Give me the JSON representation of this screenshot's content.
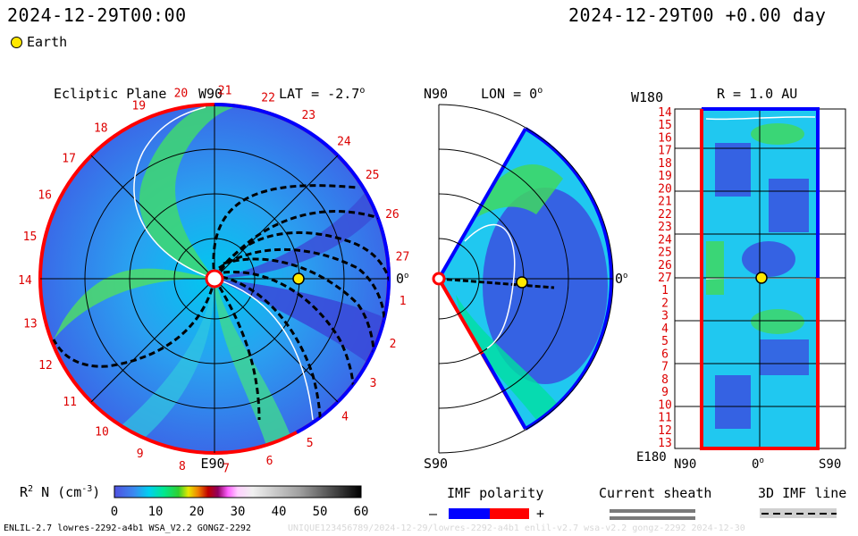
{
  "header": {
    "left_timestamp": "2024-12-29T00:00",
    "right_timestamp": "2024-12-29T00 +0.00 day",
    "earth_label": "Earth"
  },
  "ecliptic": {
    "title": "Ecliptic Plane",
    "lat": "LAT = -2.7",
    "top_label": "W90",
    "bottom_label": "E90",
    "right_label": "0",
    "degree_sign": "o",
    "rotations": [
      "27",
      "1",
      "2",
      "3",
      "4",
      "5",
      "6",
      "7",
      "8",
      "9",
      "10",
      "11",
      "12",
      "13",
      "14",
      "15",
      "16",
      "17",
      "18",
      "19",
      "20",
      "21",
      "22",
      "23",
      "24",
      "25",
      "26"
    ]
  },
  "meridional": {
    "top_label": "N90",
    "lon": "LON = 0",
    "bottom_label": "S90",
    "right_label": "0",
    "degree_sign": "o"
  },
  "synoptic": {
    "top_label": "W180",
    "r": "R = 1.0 AU",
    "bottom_label": "E180",
    "x_left": "N90",
    "x_mid": "0",
    "x_right": "S90",
    "degree_sign": "o",
    "rotations": [
      "14",
      "15",
      "16",
      "17",
      "18",
      "19",
      "20",
      "21",
      "22",
      "23",
      "24",
      "25",
      "26",
      "27",
      "1",
      "2",
      "3",
      "4",
      "5",
      "6",
      "7",
      "8",
      "9",
      "10",
      "11",
      "12",
      "13"
    ]
  },
  "colorbar": {
    "label": "R",
    "label_sup": "2",
    "label_rest": " N (cm",
    "label_exp": "-3",
    "label_close": ")",
    "ticks": [
      "0",
      "10",
      "20",
      "30",
      "40",
      "50",
      "60"
    ],
    "colors": {
      "low": "#3a3ae0",
      "mid_low": "#00b0e8",
      "mid": "#00e890",
      "mid_high": "#e0e000",
      "high": "#c00000",
      "top": "#000000"
    }
  },
  "legend": {
    "imf_title": "IMF polarity",
    "imf_minus": "–",
    "imf_plus": "+",
    "sheath_title": "Current sheath",
    "imf3d_title": "3D IMF line",
    "neg_color": "#0000ff",
    "pos_color": "#ff0000"
  },
  "footer": {
    "left": "ENLIL-2.7 lowres-2292-a4b1 WSA_V2.2 GONGZ-2292",
    "right": "UNIQUE123456789/2024-12-29/lowres-2292-a4b1 enlil-v2.7 wsa-v2.2 gongz-2292 2024-12-30"
  }
}
